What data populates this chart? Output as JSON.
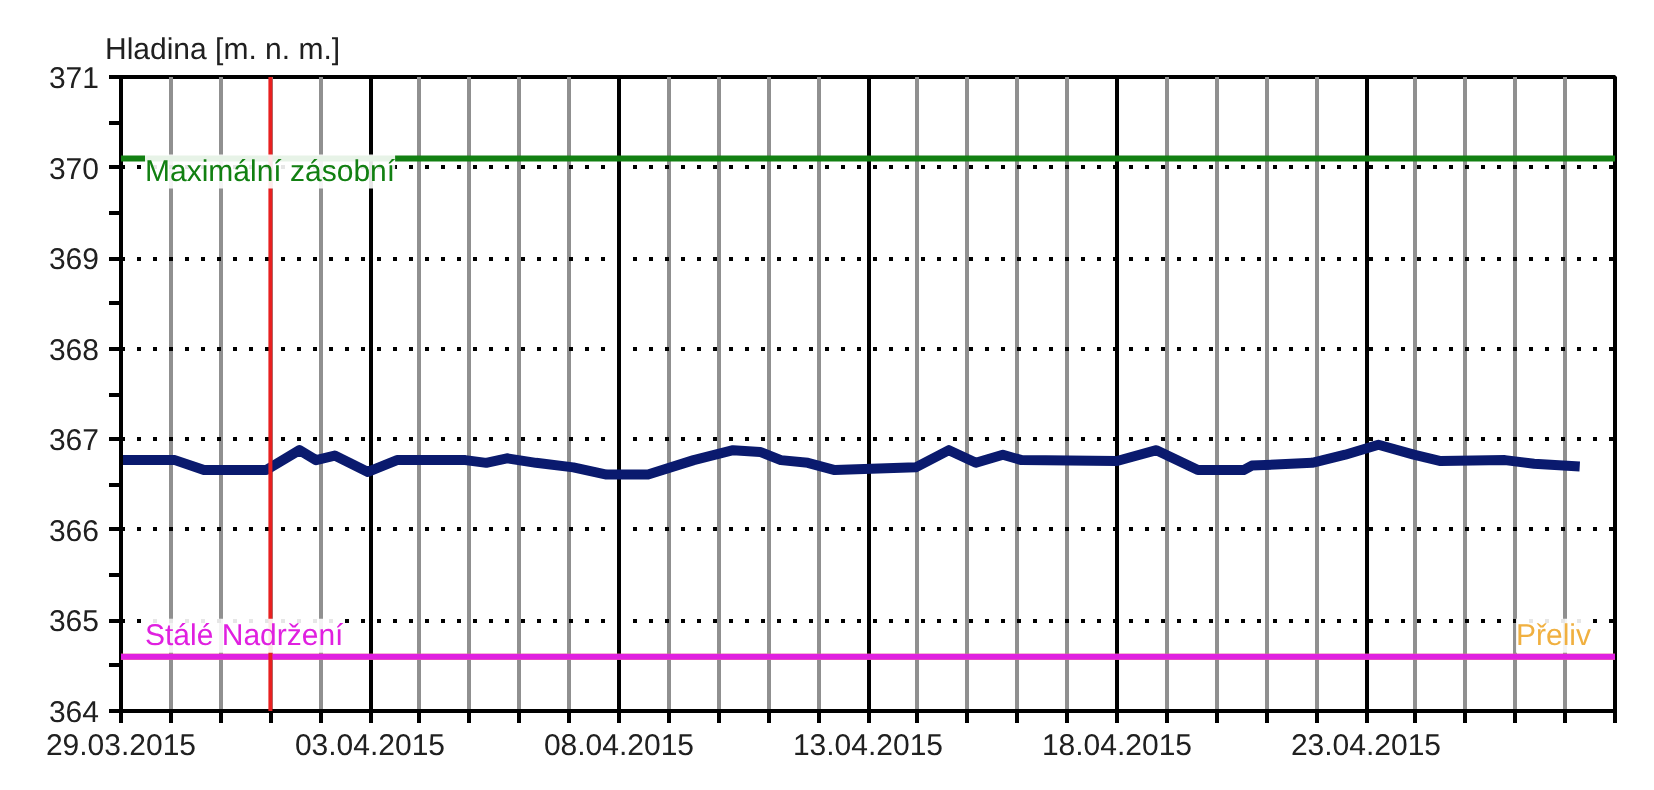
{
  "chart_data": {
    "type": "line",
    "ylabel": "Hladina [m. n. m.]",
    "x": [
      "2015-03-29T00:00",
      "2015-03-30T02:00",
      "2015-03-30T16:00",
      "2015-03-31T22:00",
      "2015-04-01T14:00",
      "2015-04-01T22:00",
      "2015-04-02T07:00",
      "2015-04-02T23:00",
      "2015-04-03T13:00",
      "2015-04-04T22:00",
      "2015-04-05T08:00",
      "2015-04-05T18:00",
      "2015-04-06T08:00",
      "2015-04-07T02:00",
      "2015-04-07T18:00",
      "2015-04-08T14:00",
      "2015-04-09T12:00",
      "2015-04-10T07:00",
      "2015-04-10T20:00",
      "2015-04-11T06:00",
      "2015-04-11T19:00",
      "2015-04-12T08:00",
      "2015-04-13T23:00",
      "2015-04-14T15:00",
      "2015-04-15T04:00",
      "2015-04-15T17:00",
      "2015-04-16T02:00",
      "2015-04-18T00:00",
      "2015-04-18T19:00",
      "2015-04-19T15:00",
      "2015-04-20T13:00",
      "2015-04-20T17:00",
      "2015-04-21T22:00",
      "2015-04-22T14:00",
      "2015-04-23T06:00",
      "2015-04-23T23:00",
      "2015-04-24T12:00",
      "2015-04-25T19:00",
      "2015-04-26T09:00",
      "2015-04-27T07:00"
    ],
    "series": [
      {
        "color": "#0a1a6e",
        "values": [
          366.77,
          366.77,
          366.66,
          366.66,
          366.88,
          366.77,
          366.82,
          366.64,
          366.77,
          366.77,
          366.74,
          366.79,
          366.74,
          366.69,
          366.61,
          366.61,
          366.77,
          366.88,
          366.86,
          366.77,
          366.74,
          366.66,
          366.69,
          366.88,
          366.74,
          366.83,
          366.77,
          366.76,
          366.88,
          366.66,
          366.66,
          366.71,
          366.74,
          366.83,
          366.94,
          366.83,
          366.76,
          366.77,
          366.73,
          366.7
        ]
      }
    ],
    "xlim": [
      "2015-03-29",
      "2015-04-28"
    ],
    "xticks": [
      {
        "value": "2015-03-29",
        "label": "29.03.2015"
      },
      {
        "value": "2015-03-30",
        "label": null
      },
      {
        "value": "2015-03-31",
        "label": null
      },
      {
        "value": "2015-04-01",
        "label": null
      },
      {
        "value": "2015-04-02",
        "label": null
      },
      {
        "value": "2015-04-03",
        "label": "03.04.2015"
      },
      {
        "value": "2015-04-04",
        "label": null
      },
      {
        "value": "2015-04-05",
        "label": null
      },
      {
        "value": "2015-04-06",
        "label": null
      },
      {
        "value": "2015-04-07",
        "label": null
      },
      {
        "value": "2015-04-08",
        "label": "08.04.2015"
      },
      {
        "value": "2015-04-09",
        "label": null
      },
      {
        "value": "2015-04-10",
        "label": null
      },
      {
        "value": "2015-04-11",
        "label": null
      },
      {
        "value": "2015-04-12",
        "label": null
      },
      {
        "value": "2015-04-13",
        "label": "13.04.2015"
      },
      {
        "value": "2015-04-14",
        "label": null
      },
      {
        "value": "2015-04-15",
        "label": null
      },
      {
        "value": "2015-04-16",
        "label": null
      },
      {
        "value": "2015-04-17",
        "label": null
      },
      {
        "value": "2015-04-18",
        "label": "18.04.2015"
      },
      {
        "value": "2015-04-19",
        "label": null
      },
      {
        "value": "2015-04-20",
        "label": null
      },
      {
        "value": "2015-04-21",
        "label": null
      },
      {
        "value": "2015-04-22",
        "label": null
      },
      {
        "value": "2015-04-23",
        "label": "23.04.2015"
      },
      {
        "value": "2015-04-24",
        "label": null
      },
      {
        "value": "2015-04-25",
        "label": null
      },
      {
        "value": "2015-04-26",
        "label": null
      },
      {
        "value": "2015-04-27",
        "label": null
      },
      {
        "value": "2015-04-28",
        "label": null
      }
    ],
    "ylim": [
      364,
      371
    ],
    "yticks": [
      364,
      {
        "value": 364.5,
        "label": null
      },
      365,
      {
        "value": 365.5,
        "label": null
      },
      366,
      {
        "value": 366.5,
        "label": null
      },
      367,
      {
        "value": 367.5,
        "label": null
      },
      368,
      {
        "value": 368.5,
        "label": null
      },
      369,
      {
        "value": 369.5,
        "label": null
      },
      370,
      {
        "value": 370.5,
        "label": null
      },
      371
    ],
    "grid": true,
    "line_style": "solid",
    "marker": "none",
    "ref_lines": [
      {
        "axis": "y",
        "value": 370.1,
        "label": "Maximální zásobní",
        "color": "#128012"
      },
      {
        "axis": "y",
        "value": 364.6,
        "label": "Přeliv",
        "color": "#f0b040"
      },
      {
        "axis": "y",
        "value": 364.6,
        "label": "Stálé Nadržení",
        "color": "#e020e0"
      },
      {
        "axis": "x",
        "value": "2015-04-01",
        "color": "#e82020"
      }
    ]
  }
}
